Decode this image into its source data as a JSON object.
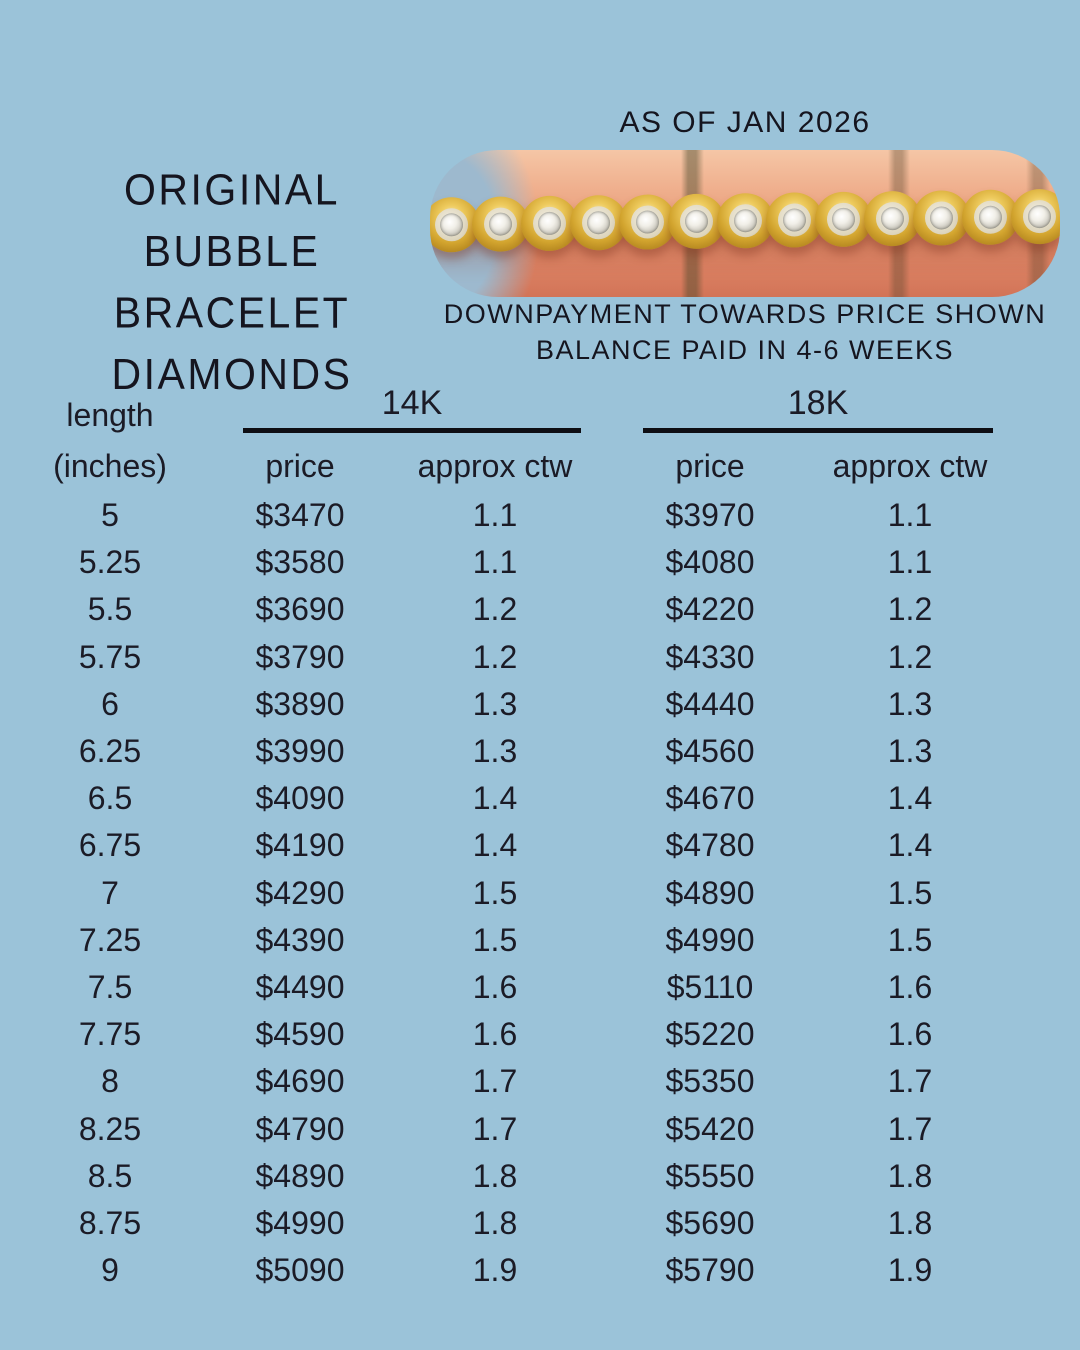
{
  "colors": {
    "background": "#9bc3d9",
    "text": "#1b1b26",
    "underline": "#0e0e14",
    "bracelet_gold": "#d2a42e",
    "photo_skin": "#efae8c"
  },
  "header": {
    "as_of": "AS OF JAN 2026",
    "title_lines": [
      "ORIGINAL BUBBLE",
      "BRACELET",
      "DIAMONDS"
    ],
    "note_line1": "DOWNPAYMENT TOWARDS PRICE SHOWN",
    "note_line2": "BALANCE PAID IN 4-6 WEEKS"
  },
  "bracelet_photo": {
    "bubble_count": 13
  },
  "table": {
    "row_header": {
      "line1": "length",
      "line2": "(inches)"
    },
    "groups": [
      {
        "label": "14K",
        "subcolumns": [
          "price",
          "approx ctw"
        ]
      },
      {
        "label": "18K",
        "subcolumns": [
          "price",
          "approx ctw"
        ]
      }
    ],
    "rows": [
      {
        "length": "5",
        "k14_price": "$3470",
        "k14_ctw": "1.1",
        "k18_price": "$3970",
        "k18_ctw": "1.1"
      },
      {
        "length": "5.25",
        "k14_price": "$3580",
        "k14_ctw": "1.1",
        "k18_price": "$4080",
        "k18_ctw": "1.1"
      },
      {
        "length": "5.5",
        "k14_price": "$3690",
        "k14_ctw": "1.2",
        "k18_price": "$4220",
        "k18_ctw": "1.2"
      },
      {
        "length": "5.75",
        "k14_price": "$3790",
        "k14_ctw": "1.2",
        "k18_price": "$4330",
        "k18_ctw": "1.2"
      },
      {
        "length": "6",
        "k14_price": "$3890",
        "k14_ctw": "1.3",
        "k18_price": "$4440",
        "k18_ctw": "1.3"
      },
      {
        "length": "6.25",
        "k14_price": "$3990",
        "k14_ctw": "1.3",
        "k18_price": "$4560",
        "k18_ctw": "1.3"
      },
      {
        "length": "6.5",
        "k14_price": "$4090",
        "k14_ctw": "1.4",
        "k18_price": "$4670",
        "k18_ctw": "1.4"
      },
      {
        "length": "6.75",
        "k14_price": "$4190",
        "k14_ctw": "1.4",
        "k18_price": "$4780",
        "k18_ctw": "1.4"
      },
      {
        "length": "7",
        "k14_price": "$4290",
        "k14_ctw": "1.5",
        "k18_price": "$4890",
        "k18_ctw": "1.5"
      },
      {
        "length": "7.25",
        "k14_price": "$4390",
        "k14_ctw": "1.5",
        "k18_price": "$4990",
        "k18_ctw": "1.5"
      },
      {
        "length": "7.5",
        "k14_price": "$4490",
        "k14_ctw": "1.6",
        "k18_price": "$5110",
        "k18_ctw": "1.6"
      },
      {
        "length": "7.75",
        "k14_price": "$4590",
        "k14_ctw": "1.6",
        "k18_price": "$5220",
        "k18_ctw": "1.6"
      },
      {
        "length": "8",
        "k14_price": "$4690",
        "k14_ctw": "1.7",
        "k18_price": "$5350",
        "k18_ctw": "1.7"
      },
      {
        "length": "8.25",
        "k14_price": "$4790",
        "k14_ctw": "1.7",
        "k18_price": "$5420",
        "k18_ctw": "1.7"
      },
      {
        "length": "8.5",
        "k14_price": "$4890",
        "k14_ctw": "1.8",
        "k18_price": "$5550",
        "k18_ctw": "1.8"
      },
      {
        "length": "8.75",
        "k14_price": "$4990",
        "k14_ctw": "1.8",
        "k18_price": "$5690",
        "k18_ctw": "1.8"
      },
      {
        "length": "9",
        "k14_price": "$5090",
        "k14_ctw": "1.9",
        "k18_price": "$5790",
        "k18_ctw": "1.9"
      }
    ]
  },
  "chart_data": {
    "type": "table",
    "title": "ORIGINAL BUBBLE BRACELET DIAMONDS",
    "as_of": "AS OF JAN 2026",
    "notes": [
      "DOWNPAYMENT TOWARDS PRICE SHOWN",
      "BALANCE PAID IN 4-6 WEEKS"
    ],
    "columns": [
      "length (inches)",
      "14K price ($)",
      "14K approx ctw",
      "18K price ($)",
      "18K approx ctw"
    ],
    "rows": [
      [
        5,
        3470,
        1.1,
        3970,
        1.1
      ],
      [
        5.25,
        3580,
        1.1,
        4080,
        1.1
      ],
      [
        5.5,
        3690,
        1.2,
        4220,
        1.2
      ],
      [
        5.75,
        3790,
        1.2,
        4330,
        1.2
      ],
      [
        6,
        3890,
        1.3,
        4440,
        1.3
      ],
      [
        6.25,
        3990,
        1.3,
        4560,
        1.3
      ],
      [
        6.5,
        4090,
        1.4,
        4670,
        1.4
      ],
      [
        6.75,
        4190,
        1.4,
        4780,
        1.4
      ],
      [
        7,
        4290,
        1.5,
        4890,
        1.5
      ],
      [
        7.25,
        4390,
        1.5,
        4990,
        1.5
      ],
      [
        7.5,
        4490,
        1.6,
        5110,
        1.6
      ],
      [
        7.75,
        4590,
        1.6,
        5220,
        1.6
      ],
      [
        8,
        4690,
        1.7,
        5350,
        1.7
      ],
      [
        8.25,
        4790,
        1.7,
        5420,
        1.7
      ],
      [
        8.5,
        4890,
        1.8,
        5550,
        1.8
      ],
      [
        8.75,
        4990,
        1.8,
        5690,
        1.8
      ],
      [
        9,
        5090,
        1.9,
        5790,
        1.9
      ]
    ]
  }
}
